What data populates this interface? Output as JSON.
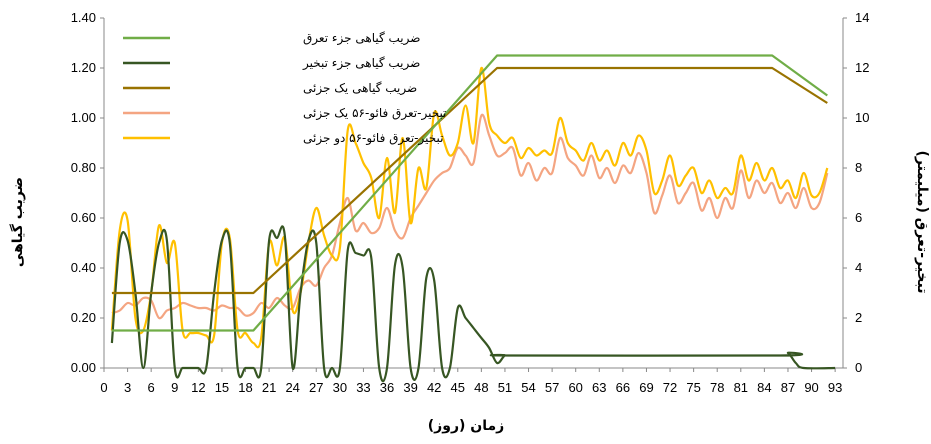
{
  "chart_data": {
    "type": "line",
    "xlabel": "زمان (روز)",
    "ylabel_left": "ضریب گیاهی",
    "ylabel_right": "تبخیر-تعرق (میلیمتر)",
    "x_ticks": [
      "0",
      "3",
      "6",
      "9",
      "12",
      "15",
      "18",
      "21",
      "24",
      "27",
      "30",
      "33",
      "36",
      "39",
      "42",
      "45",
      "48",
      "51",
      "54",
      "57",
      "60",
      "63",
      "66",
      "69",
      "72",
      "75",
      "78",
      "81",
      "84",
      "87",
      "90",
      "93"
    ],
    "y_left_ticks": [
      "0.00",
      "0.20",
      "0.40",
      "0.60",
      "0.80",
      "1.00",
      "1.20",
      "1.40"
    ],
    "y_right_ticks": [
      "0",
      "2",
      "4",
      "6",
      "8",
      "10",
      "12",
      "14"
    ],
    "xlim": [
      0,
      94
    ],
    "ylim_left": [
      0,
      1.4
    ],
    "ylim_right": [
      0,
      14
    ],
    "legend_position": "top-left",
    "series": [
      {
        "name": "ضریب گیاهی جزء تعرق",
        "axis": "left",
        "color": "#70ad47",
        "points": [
          [
            1,
            0.15
          ],
          [
            19,
            0.15
          ],
          [
            50,
            1.25
          ],
          [
            85,
            1.25
          ],
          [
            92,
            1.09
          ]
        ]
      },
      {
        "name": "ضریب گیاهی جزء تبخیر",
        "axis": "left",
        "color": "#375623",
        "points": [
          [
            1,
            0.1
          ],
          [
            2,
            0.5
          ],
          [
            3,
            0.51
          ],
          [
            4,
            0.3
          ],
          [
            5,
            0.0
          ],
          [
            6,
            0.3
          ],
          [
            7,
            0.5
          ],
          [
            8,
            0.51
          ],
          [
            9,
            0.0
          ],
          [
            10,
            0.0
          ],
          [
            11,
            0.0
          ],
          [
            12,
            0.0
          ],
          [
            13,
            0.0
          ],
          [
            14,
            0.3
          ],
          [
            15,
            0.51
          ],
          [
            16,
            0.5
          ],
          [
            17,
            0.0
          ],
          [
            18,
            0.0
          ],
          [
            19,
            0.0
          ],
          [
            20,
            0.0
          ],
          [
            21,
            0.51
          ],
          [
            22,
            0.52
          ],
          [
            23,
            0.53
          ],
          [
            24,
            0.0
          ],
          [
            25,
            0.3
          ],
          [
            26,
            0.51
          ],
          [
            27,
            0.5
          ],
          [
            28,
            0.0
          ],
          [
            29,
            0.0
          ],
          [
            30,
            0.0
          ],
          [
            31,
            0.47
          ],
          [
            32,
            0.46
          ],
          [
            33,
            0.45
          ],
          [
            34,
            0.44
          ],
          [
            35,
            0.0
          ],
          [
            36,
            0.0
          ],
          [
            37,
            0.41
          ],
          [
            38,
            0.4
          ],
          [
            39,
            0.0
          ],
          [
            40,
            0.0
          ],
          [
            41,
            0.36
          ],
          [
            42,
            0.35
          ],
          [
            43,
            0.0
          ],
          [
            44,
            0.0
          ],
          [
            45,
            0.24
          ],
          [
            46,
            0.2
          ],
          [
            47,
            0.16
          ],
          [
            48,
            0.12
          ],
          [
            49,
            0.08
          ],
          [
            50,
            0.02
          ],
          [
            51,
            0.05
          ],
          [
            52,
            0.05
          ],
          [
            86,
            0.05
          ],
          [
            87,
            0.06
          ],
          [
            88,
            0.02
          ],
          [
            89,
            0.0
          ],
          [
            93,
            0.0
          ]
        ]
      },
      {
        "name": "ضریب گیاهی یک جزئی",
        "axis": "left",
        "color": "#997300",
        "points": [
          [
            1,
            0.3
          ],
          [
            19,
            0.3
          ],
          [
            50,
            1.2
          ],
          [
            85,
            1.2
          ],
          [
            92,
            1.06
          ]
        ]
      },
      {
        "name": "تبخیر-تعرق فائو-۵۶ یک جزئی",
        "axis": "right",
        "color": "#f4a582",
        "points": [
          [
            1,
            2.2
          ],
          [
            2,
            2.3
          ],
          [
            3,
            2.6
          ],
          [
            4,
            2.5
          ],
          [
            5,
            2.8
          ],
          [
            6,
            2.7
          ],
          [
            7,
            2.0
          ],
          [
            8,
            2.3
          ],
          [
            9,
            2.4
          ],
          [
            10,
            2.6
          ],
          [
            11,
            2.5
          ],
          [
            12,
            2.4
          ],
          [
            13,
            2.4
          ],
          [
            14,
            2.3
          ],
          [
            15,
            2.5
          ],
          [
            16,
            2.4
          ],
          [
            17,
            2.4
          ],
          [
            18,
            2.1
          ],
          [
            19,
            2.2
          ],
          [
            20,
            2.6
          ],
          [
            21,
            2.4
          ],
          [
            22,
            2.8
          ],
          [
            23,
            2.5
          ],
          [
            24,
            2.4
          ],
          [
            25,
            3.2
          ],
          [
            26,
            3.5
          ],
          [
            27,
            3.3
          ],
          [
            28,
            4.0
          ],
          [
            29,
            4.5
          ],
          [
            30,
            5.8
          ],
          [
            31,
            6.8
          ],
          [
            32,
            5.5
          ],
          [
            33,
            5.8
          ],
          [
            34,
            5.4
          ],
          [
            35,
            5.6
          ],
          [
            36,
            6.4
          ],
          [
            37,
            5.5
          ],
          [
            38,
            5.2
          ],
          [
            39,
            6.0
          ],
          [
            40,
            6.5
          ],
          [
            41,
            7.0
          ],
          [
            42,
            7.5
          ],
          [
            43,
            7.8
          ],
          [
            44,
            8.0
          ],
          [
            45,
            8.8
          ],
          [
            46,
            8.5
          ],
          [
            47,
            8.2
          ],
          [
            48,
            10.1
          ],
          [
            49,
            9.3
          ],
          [
            50,
            8.5
          ],
          [
            51,
            8.6
          ],
          [
            52,
            8.8
          ],
          [
            53,
            7.7
          ],
          [
            54,
            8.2
          ],
          [
            55,
            7.5
          ],
          [
            56,
            8.0
          ],
          [
            57,
            7.8
          ],
          [
            58,
            9.2
          ],
          [
            59,
            8.4
          ],
          [
            60,
            8.1
          ],
          [
            61,
            7.7
          ],
          [
            62,
            8.5
          ],
          [
            63,
            7.6
          ],
          [
            64,
            8.0
          ],
          [
            65,
            7.4
          ],
          [
            66,
            8.1
          ],
          [
            67,
            7.8
          ],
          [
            68,
            8.6
          ],
          [
            69,
            7.8
          ],
          [
            70,
            6.2
          ],
          [
            71,
            6.9
          ],
          [
            72,
            7.7
          ],
          [
            73,
            6.6
          ],
          [
            74,
            7.0
          ],
          [
            75,
            7.4
          ],
          [
            76,
            6.3
          ],
          [
            77,
            6.8
          ],
          [
            78,
            6.0
          ],
          [
            79,
            6.8
          ],
          [
            80,
            6.4
          ],
          [
            81,
            7.9
          ],
          [
            82,
            6.8
          ],
          [
            83,
            7.5
          ],
          [
            84,
            7.0
          ],
          [
            85,
            7.4
          ],
          [
            86,
            6.6
          ],
          [
            87,
            7.0
          ],
          [
            88,
            6.4
          ],
          [
            89,
            7.2
          ],
          [
            90,
            6.4
          ],
          [
            91,
            6.6
          ],
          [
            92,
            7.8
          ]
        ]
      },
      {
        "name": "تبخیر-تعرق فائو-۵۶ دو جزئی",
        "axis": "right",
        "color": "#ffc000",
        "points": [
          [
            1,
            1.5
          ],
          [
            2,
            5.5
          ],
          [
            3,
            5.9
          ],
          [
            4,
            2.0
          ],
          [
            5,
            1.5
          ],
          [
            6,
            3.0
          ],
          [
            7,
            5.7
          ],
          [
            8,
            4.2
          ],
          [
            9,
            5.0
          ],
          [
            10,
            1.5
          ],
          [
            11,
            1.4
          ],
          [
            12,
            1.4
          ],
          [
            13,
            1.3
          ],
          [
            14,
            1.3
          ],
          [
            15,
            5.0
          ],
          [
            16,
            5.2
          ],
          [
            17,
            1.5
          ],
          [
            18,
            1.4
          ],
          [
            19,
            1.0
          ],
          [
            20,
            1.2
          ],
          [
            21,
            5.0
          ],
          [
            22,
            4.1
          ],
          [
            23,
            5.2
          ],
          [
            24,
            2.3
          ],
          [
            25,
            3.0
          ],
          [
            26,
            5.0
          ],
          [
            27,
            6.4
          ],
          [
            28,
            5.3
          ],
          [
            29,
            4.5
          ],
          [
            30,
            4.8
          ],
          [
            31,
            9.5
          ],
          [
            32,
            9.0
          ],
          [
            33,
            8.2
          ],
          [
            34,
            7.6
          ],
          [
            35,
            6.0
          ],
          [
            36,
            8.4
          ],
          [
            37,
            6.2
          ],
          [
            38,
            9.2
          ],
          [
            39,
            5.8
          ],
          [
            40,
            8.0
          ],
          [
            41,
            7.2
          ],
          [
            42,
            10.2
          ],
          [
            43,
            9.3
          ],
          [
            44,
            8.5
          ],
          [
            45,
            9.0
          ],
          [
            46,
            10.5
          ],
          [
            47,
            9.0
          ],
          [
            48,
            12.0
          ],
          [
            49,
            9.8
          ],
          [
            50,
            9.3
          ],
          [
            51,
            9.0
          ],
          [
            52,
            9.2
          ],
          [
            53,
            8.4
          ],
          [
            54,
            8.8
          ],
          [
            55,
            8.5
          ],
          [
            56,
            8.7
          ],
          [
            57,
            8.6
          ],
          [
            58,
            10.0
          ],
          [
            59,
            9.0
          ],
          [
            60,
            8.7
          ],
          [
            61,
            8.3
          ],
          [
            62,
            9.0
          ],
          [
            63,
            8.3
          ],
          [
            64,
            8.7
          ],
          [
            65,
            8.1
          ],
          [
            66,
            9.0
          ],
          [
            67,
            8.5
          ],
          [
            68,
            9.3
          ],
          [
            69,
            8.7
          ],
          [
            70,
            7.0
          ],
          [
            71,
            7.5
          ],
          [
            72,
            8.5
          ],
          [
            73,
            7.3
          ],
          [
            74,
            7.7
          ],
          [
            75,
            8.0
          ],
          [
            76,
            7.0
          ],
          [
            77,
            7.5
          ],
          [
            78,
            6.8
          ],
          [
            79,
            7.2
          ],
          [
            80,
            7.0
          ],
          [
            81,
            8.5
          ],
          [
            82,
            7.5
          ],
          [
            83,
            8.2
          ],
          [
            84,
            7.5
          ],
          [
            85,
            8.0
          ],
          [
            86,
            7.2
          ],
          [
            87,
            7.5
          ],
          [
            88,
            6.8
          ],
          [
            89,
            7.8
          ],
          [
            90,
            6.9
          ],
          [
            91,
            7.0
          ],
          [
            92,
            8.0
          ]
        ]
      }
    ]
  }
}
